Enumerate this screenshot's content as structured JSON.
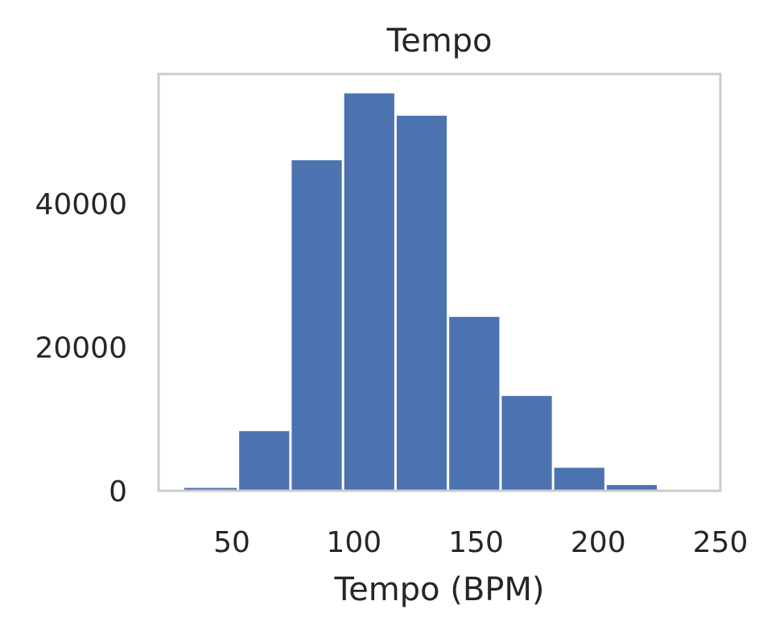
{
  "chart_data": {
    "type": "bar",
    "title": "Tempo",
    "xlabel": "Tempo (BPM)",
    "ylabel": "",
    "bin_edges": [
      30,
      52.5,
      74,
      95.5,
      117,
      138.5,
      160,
      181.5,
      203,
      224.5,
      246
    ],
    "values": [
      400,
      8300,
      46000,
      55300,
      52200,
      24200,
      13200,
      3200,
      800,
      100
    ],
    "xlim": [
      20,
      250
    ],
    "ylim": [
      0,
      58000
    ],
    "xticks": [
      50,
      100,
      150,
      200,
      250
    ],
    "yticks": [
      0,
      20000,
      40000
    ],
    "grid": false,
    "bar_color": "#4c72b0",
    "frame_color": "#cccccc"
  }
}
